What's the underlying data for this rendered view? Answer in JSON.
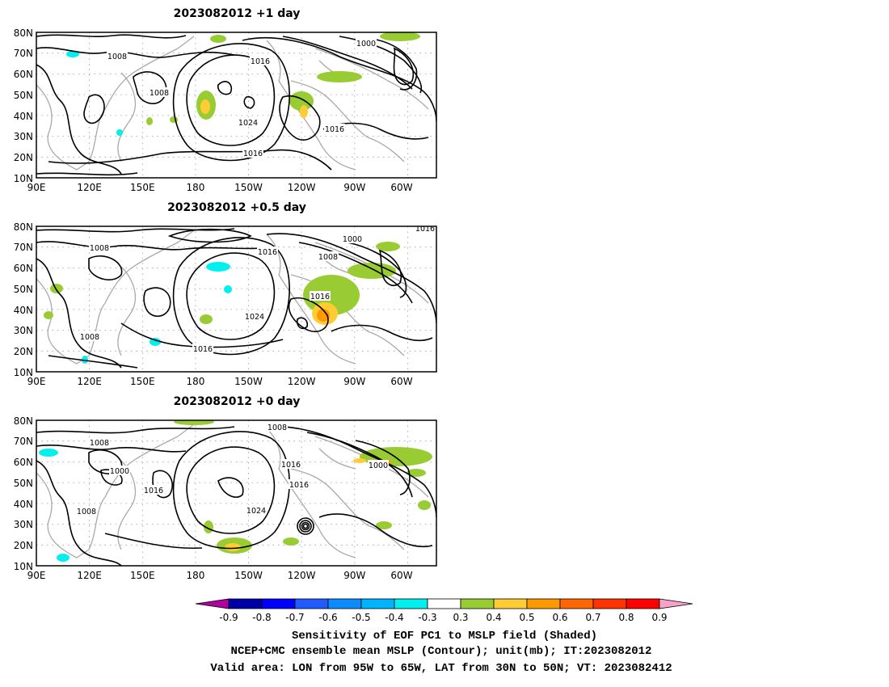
{
  "panels": [
    {
      "title": "2023082012  +1 day",
      "contour_labels": [
        "1008",
        "1016",
        "1000",
        "1008",
        "1024",
        "1016",
        "1016"
      ],
      "sensitivity_peak": 0.5
    },
    {
      "title": "2023082012  +0.5 day",
      "contour_labels": [
        "1008",
        "1016",
        "1000",
        "1016",
        "1008",
        "1016",
        "1024",
        "1008",
        "1016"
      ],
      "sensitivity_peak": 0.6
    },
    {
      "title": "2023082012  +0 day",
      "contour_labels": [
        "1008",
        "1008",
        "1000",
        "1016",
        "1016",
        "1000",
        "1016",
        "1008",
        "1024"
      ],
      "sensitivity_peak": 0.6
    }
  ],
  "lat_ticks": [
    "80N",
    "70N",
    "60N",
    "50N",
    "40N",
    "30N",
    "20N",
    "10N"
  ],
  "lon_ticks": [
    "90E",
    "120E",
    "150E",
    "180",
    "150W",
    "120W",
    "90W",
    "60W"
  ],
  "colorbar": {
    "labels": [
      "-0.9",
      "-0.8",
      "-0.7",
      "-0.6",
      "-0.5",
      "-0.4",
      "-0.3",
      "0.3",
      "0.4",
      "0.5",
      "0.6",
      "0.7",
      "0.8",
      "0.9"
    ],
    "low_arrow_color": "#b0009f",
    "high_arrow_color": "#f7a2c9",
    "colors": [
      "#0000a8",
      "#0000ff",
      "#1e5cff",
      "#0a8cff",
      "#00b4ff",
      "#00f0f0",
      "#ffffff",
      "#99cc33",
      "#ffcc33",
      "#ff9900",
      "#ff6600",
      "#ff3300",
      "#ff0000"
    ]
  },
  "caption": {
    "line1": "Sensitivity of EOF PC1 to MSLP field (Shaded)",
    "line2": "NCEP+CMC ensemble mean MSLP (Contour); unit(mb); IT:2023082012",
    "line3": "Valid area: LON from 95W to 65W, LAT from 30N to 50N; VT: 2023082412"
  },
  "colors": {
    "contour": "#000000",
    "coastline": "#a9a9a9",
    "grid": "#999999"
  }
}
